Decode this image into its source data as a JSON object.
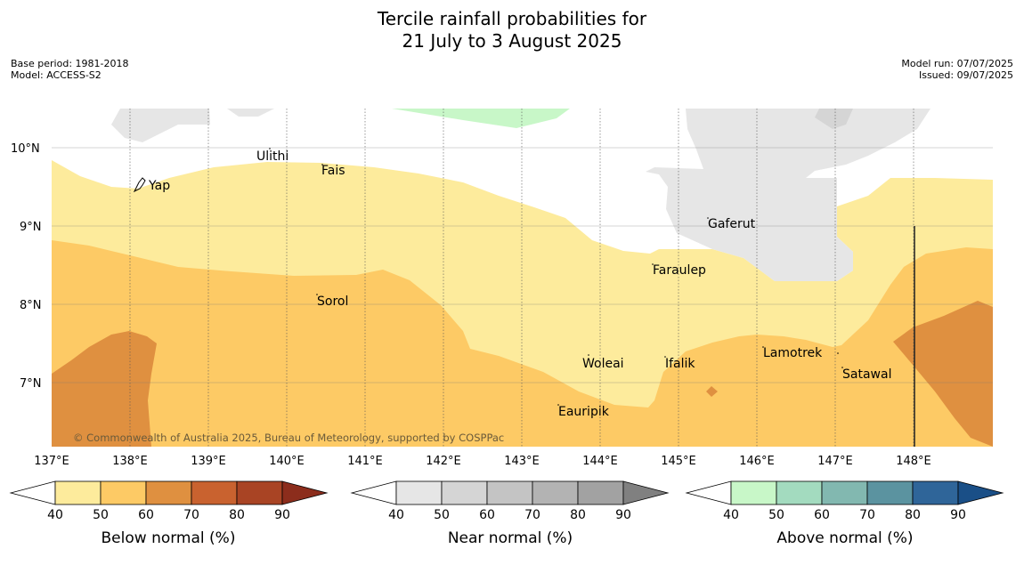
{
  "title_line1": "Tercile rainfall probabilities for",
  "title_line2": "21 July to 3 August 2025",
  "base_period": "Base period: 1981-2018",
  "model": "Model: ACCESS-S2",
  "model_run": "Model run: 07/07/2025",
  "issued": "Issued: 09/07/2025",
  "credit": "© Commonwealth of Australia 2025, Bureau of Meteorology, supported by COSPPac",
  "lat_labels": [
    "10°N",
    "9°N",
    "8°N",
    "7°N"
  ],
  "lon_labels": [
    "137°E",
    "138°E",
    "139°E",
    "140°E",
    "141°E",
    "142°E",
    "143°E",
    "144°E",
    "145°E",
    "146°E",
    "147°E",
    "148°E"
  ],
  "places": [
    "Ulithi",
    "Fais",
    "Yap",
    "Gaferut",
    "Faraulep",
    "Sorol",
    "Lamotrek",
    "Woleai",
    "Ifalik",
    "Satawal",
    "Eauripik"
  ],
  "colorbars": [
    {
      "label": "Below normal (%)",
      "ticks": [
        "40",
        "50",
        "60",
        "70",
        "80",
        "90"
      ],
      "colors": [
        "#fdeb9c",
        "#fdca65",
        "#df9040",
        "#c9622f",
        "#a94424",
        "#8c2d1c"
      ]
    },
    {
      "label": "Near normal (%)",
      "ticks": [
        "40",
        "50",
        "60",
        "70",
        "80",
        "90"
      ],
      "colors": [
        "#e6e6e6",
        "#d5d5d5",
        "#c4c4c4",
        "#b3b3b3",
        "#a2a2a2",
        "#808080"
      ]
    },
    {
      "label": "Above normal (%)",
      "ticks": [
        "40",
        "50",
        "60",
        "70",
        "80",
        "90"
      ],
      "colors": [
        "#c8f7c8",
        "#a3dbbf",
        "#82b8b0",
        "#5b93a0",
        "#2f6599",
        "#1a4f87"
      ]
    }
  ]
}
